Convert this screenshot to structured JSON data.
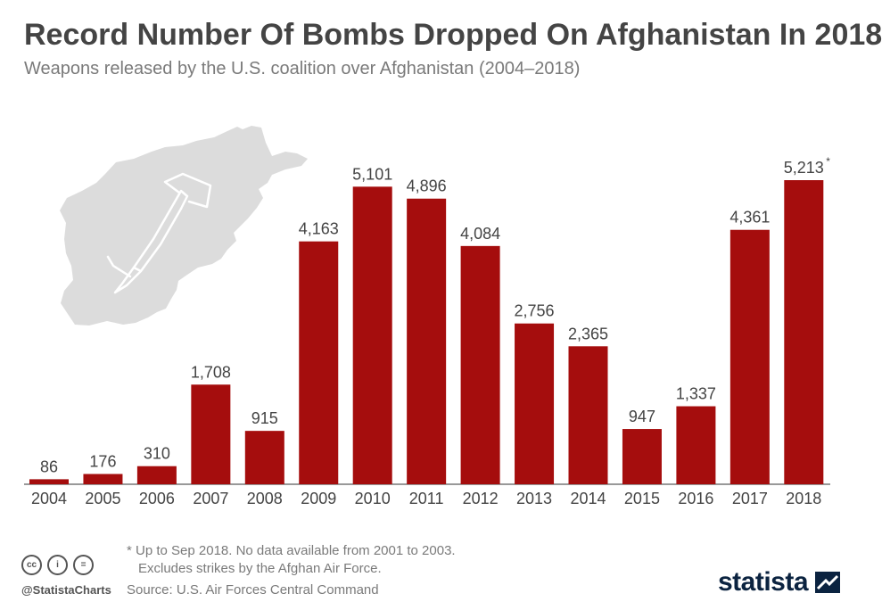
{
  "header": {
    "title": "Record Number Of Bombs Dropped On Afghanistan In 2018",
    "subtitle": "Weapons released by the U.S. coalition over Afghanistan (2004–2018)"
  },
  "chart_data": {
    "type": "bar",
    "title": "Record Number Of Bombs Dropped On Afghanistan In 2018",
    "subtitle": "Weapons released by the U.S. coalition over Afghanistan (2004–2018)",
    "categories": [
      "2004",
      "2005",
      "2006",
      "2007",
      "2008",
      "2009",
      "2010",
      "2011",
      "2012",
      "2013",
      "2014",
      "2015",
      "2016",
      "2017",
      "2018"
    ],
    "values": [
      86,
      176,
      310,
      1708,
      915,
      4163,
      5101,
      4896,
      4084,
      2756,
      2365,
      947,
      1337,
      4361,
      5213
    ],
    "data_labels": [
      "86",
      "176",
      "310",
      "1,708",
      "915",
      "4,163",
      "5,101",
      "4,896",
      "4,084",
      "2,756",
      "2,365",
      "947",
      "1,337",
      "4,361",
      "5,213"
    ],
    "annotations": {
      "2018": "*"
    },
    "ylim": [
      0,
      5213
    ],
    "xlabel": "",
    "ylabel": "",
    "grid": false,
    "bar_color": "#a50d0d"
  },
  "footnote": {
    "line1": "* Up to Sep 2018. No data available from 2001 to 2003.",
    "line2": "Excludes strikes by the Afghan Air Force."
  },
  "source": "Source: U.S. Air Forces Central Command",
  "license": {
    "handle": "@StatistaCharts",
    "icons": [
      "cc-icon",
      "by-icon",
      "nd-icon"
    ],
    "icon_glyphs": [
      "cc",
      "i",
      "="
    ]
  },
  "brand": {
    "name": "statista"
  },
  "colors": {
    "bar": "#a50d0d",
    "title": "#444444",
    "text": "#7a7a7a",
    "map": "#dcdcdc",
    "brand": "#0b2340"
  }
}
